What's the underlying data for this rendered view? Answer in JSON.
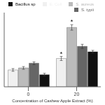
{
  "chart_data": {
    "type": "bar",
    "xlabel": "Concentration of Cashew Apple Extract (%)",
    "categories": [
      "0",
      "20"
    ],
    "series": [
      {
        "name": "E. Coli",
        "color": "#f0f0f0",
        "values": [
          6.5,
          8.2
        ],
        "errors": [
          0.2,
          0.3
        ]
      },
      {
        "name": "S. aureus",
        "color": "#bbbbbb",
        "values": [
          6.8,
          12.8
        ],
        "errors": [
          0.2,
          0.4
        ]
      },
      {
        "name": "S. typii",
        "color": "#666666",
        "values": [
          7.5,
          10.0
        ],
        "errors": [
          0.2,
          0.3
        ]
      },
      {
        "name": "Bacillus sp",
        "color": "#111111",
        "values": [
          5.8,
          9.2
        ],
        "errors": [
          0.2,
          0.2
        ]
      }
    ],
    "ylim": [
      4,
      15
    ],
    "yticks": [],
    "grid": false,
    "legend": "upper right",
    "tick_labels": "x",
    "annotations": [
      {
        "text": "*",
        "category": "20",
        "series": "E. Coli"
      },
      {
        "text": "*",
        "category": "20",
        "series": "S. aureus"
      }
    ]
  }
}
